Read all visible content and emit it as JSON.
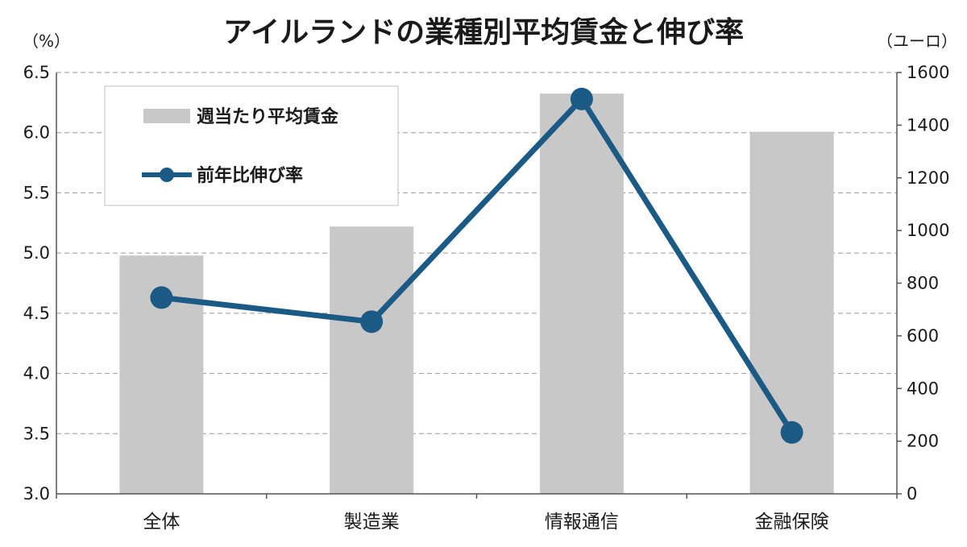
{
  "chart_data": {
    "type": "bar+line",
    "title": "アイルランドの業種別平均賃金と伸び率",
    "left_axis_unit": "（%）",
    "right_axis_unit": "（ユーロ）",
    "categories": [
      "全体",
      "製造業",
      "情報通信",
      "金融保険"
    ],
    "left_axis": {
      "ylim": [
        3.0,
        6.5
      ],
      "ticks": [
        "3.0",
        "3.5",
        "4.0",
        "4.5",
        "5.0",
        "5.5",
        "6.0",
        "6.5"
      ]
    },
    "right_axis": {
      "ylim": [
        0,
        1600
      ],
      "ticks": [
        "0",
        "200",
        "400",
        "600",
        "800",
        "1000",
        "1200",
        "1400",
        "1600"
      ]
    },
    "grid": true,
    "legend_position": "top-left",
    "series": [
      {
        "name": "週当たり平均賃金",
        "type": "bar",
        "axis": "right",
        "color": "#c8c8c8",
        "values": [
          905,
          1015,
          1520,
          1375
        ]
      },
      {
        "name": "前年比伸び率",
        "type": "line",
        "axis": "left",
        "color": "#1b5a85",
        "values": [
          4.63,
          4.43,
          6.28,
          3.51
        ]
      }
    ]
  }
}
